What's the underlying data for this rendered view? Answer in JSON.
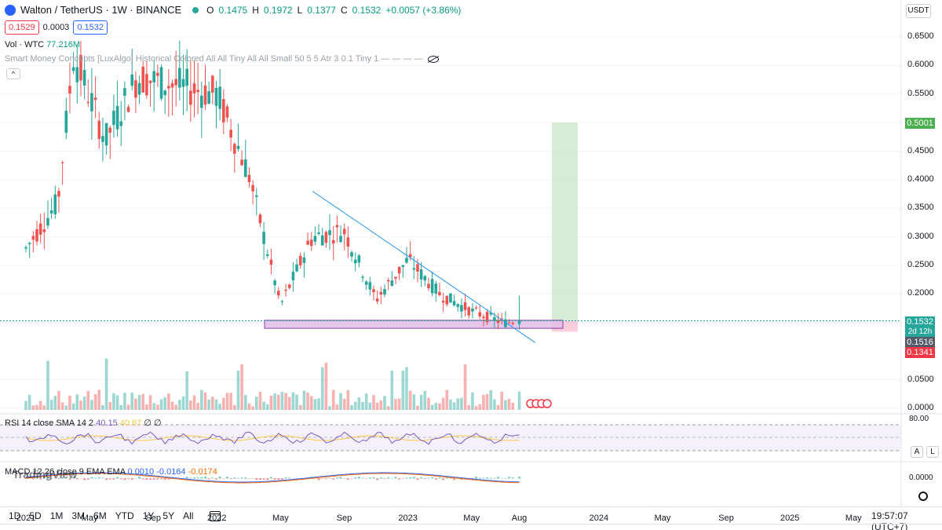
{
  "legend": {
    "symbol": "Walton / TetherUS · 1W · BINANCE",
    "open_label": "O",
    "open": "0.1475",
    "high_label": "H",
    "high": "0.1972",
    "low_label": "L",
    "low": "0.1377",
    "close_label": "C",
    "close": "0.1532",
    "change": "+0.0057 (+3.86%)"
  },
  "price_boxes": {
    "sell": "0.1529",
    "spread": "0.0003",
    "buy": "0.1532"
  },
  "volume_legend": {
    "label": "Vol · WTC",
    "value": "77.216M"
  },
  "smc_legend": "Smart Money Concepts [LuxAlgo] Historical Colored All All Tiny All All Small 50 5 5 Atr 3 0.1 Tiny 1 — — — —",
  "currency": "USDT",
  "price_axis_ticks": [
    "0.6500",
    "0.6000",
    "0.5500",
    "0.5000",
    "0.4500",
    "0.4000",
    "0.3500",
    "0.3000",
    "0.2500",
    "0.2000",
    "0.1500",
    "0.0500",
    "0.0000"
  ],
  "price_labels": {
    "target": "0.5001",
    "current": "0.1532",
    "countdown": "2d 12h",
    "support": "0.1516",
    "stop": "0.1341"
  },
  "time_axis_ticks": [
    "2021",
    "May",
    "Sep",
    "2022",
    "May",
    "Sep",
    "2023",
    "May",
    "Aug",
    "2024",
    "May",
    "Sep",
    "2025",
    "May"
  ],
  "rsi_legend": {
    "label": "RSI 14 close SMA 14 2",
    "rsi": "40.15",
    "sma": "40.67",
    "extra": "∅ ∅"
  },
  "rsi_ticks": [
    "80.00"
  ],
  "macd_legend": {
    "label": "MACD 12 26 close 9 EMA EMA",
    "hist": "0.0010",
    "macd": "-0.0164",
    "signal": "-0.0174"
  },
  "macd_ticks": [
    "0.0000"
  ],
  "watermark": "TradingView",
  "ranges": [
    "1D",
    "5D",
    "1M",
    "3M",
    "6M",
    "YTD",
    "1Y",
    "5Y",
    "All"
  ],
  "clock": "19:57:07 (UTC+7)",
  "buttons": {
    "a": "A",
    "l": "L",
    "collapse": "^"
  },
  "colors": {
    "up": "#26a69a",
    "down": "#ef5350",
    "trendline": "#2196f3",
    "zone": "#ce93d8",
    "target_zone": "#c8e6c9",
    "rsi": "#7e57c2",
    "rsi_sma": "#f7c948"
  },
  "chart_data": {
    "type": "candlestick",
    "symbol": "WTC/USDT",
    "interval": "1W",
    "y_range": [
      0,
      0.68
    ],
    "candles_sampled": [
      {
        "t": "2021-01",
        "o": 0.26,
        "h": 0.3,
        "l": 0.23,
        "c": 0.28
      },
      {
        "t": "2021-03",
        "o": 0.28,
        "h": 0.38,
        "l": 0.26,
        "c": 0.36
      },
      {
        "t": "2021-04",
        "o": 0.36,
        "h": 0.72,
        "l": 0.34,
        "c": 0.62
      },
      {
        "t": "2021-06",
        "o": 0.52,
        "h": 0.62,
        "l": 0.42,
        "c": 0.47
      },
      {
        "t": "2021-08",
        "o": 0.47,
        "h": 0.74,
        "l": 0.41,
        "c": 0.58
      },
      {
        "t": "2022-01",
        "o": 0.64,
        "h": 0.66,
        "l": 0.52,
        "c": 0.55
      },
      {
        "t": "2022-03",
        "o": 0.54,
        "h": 0.6,
        "l": 0.39,
        "c": 0.41
      },
      {
        "t": "2022-05",
        "o": 0.42,
        "h": 0.44,
        "l": 0.14,
        "c": 0.18
      },
      {
        "t": "2022-07",
        "o": 0.18,
        "h": 0.6,
        "l": 0.16,
        "c": 0.3
      },
      {
        "t": "2022-09",
        "o": 0.3,
        "h": 0.36,
        "l": 0.24,
        "c": 0.31
      },
      {
        "t": "2022-11",
        "o": 0.26,
        "h": 0.28,
        "l": 0.16,
        "c": 0.19
      },
      {
        "t": "2023-01",
        "o": 0.19,
        "h": 0.27,
        "l": 0.18,
        "c": 0.26
      },
      {
        "t": "2023-03",
        "o": 0.25,
        "h": 0.33,
        "l": 0.18,
        "c": 0.2
      },
      {
        "t": "2023-05",
        "o": 0.21,
        "h": 0.3,
        "l": 0.16,
        "c": 0.17
      },
      {
        "t": "2023-07",
        "o": 0.17,
        "h": 0.21,
        "l": 0.14,
        "c": 0.15
      },
      {
        "t": "2023-08",
        "o": 0.1475,
        "h": 0.1972,
        "l": 0.1377,
        "c": 0.1532
      }
    ],
    "annotations": {
      "descending_trendline": {
        "from": [
          "2022-07",
          0.38
        ],
        "to": [
          "2023-09",
          0.115
        ]
      },
      "support_zone": [
        0.14,
        0.154
      ],
      "long_position": {
        "entry": 0.1532,
        "target": 0.5001,
        "stop": 0.1341
      }
    },
    "volume_unit": "WTC",
    "rsi": {
      "value": 40.15,
      "sma": 40.67
    },
    "macd": {
      "hist": 0.001,
      "macd": -0.0164,
      "signal": -0.0174
    }
  }
}
